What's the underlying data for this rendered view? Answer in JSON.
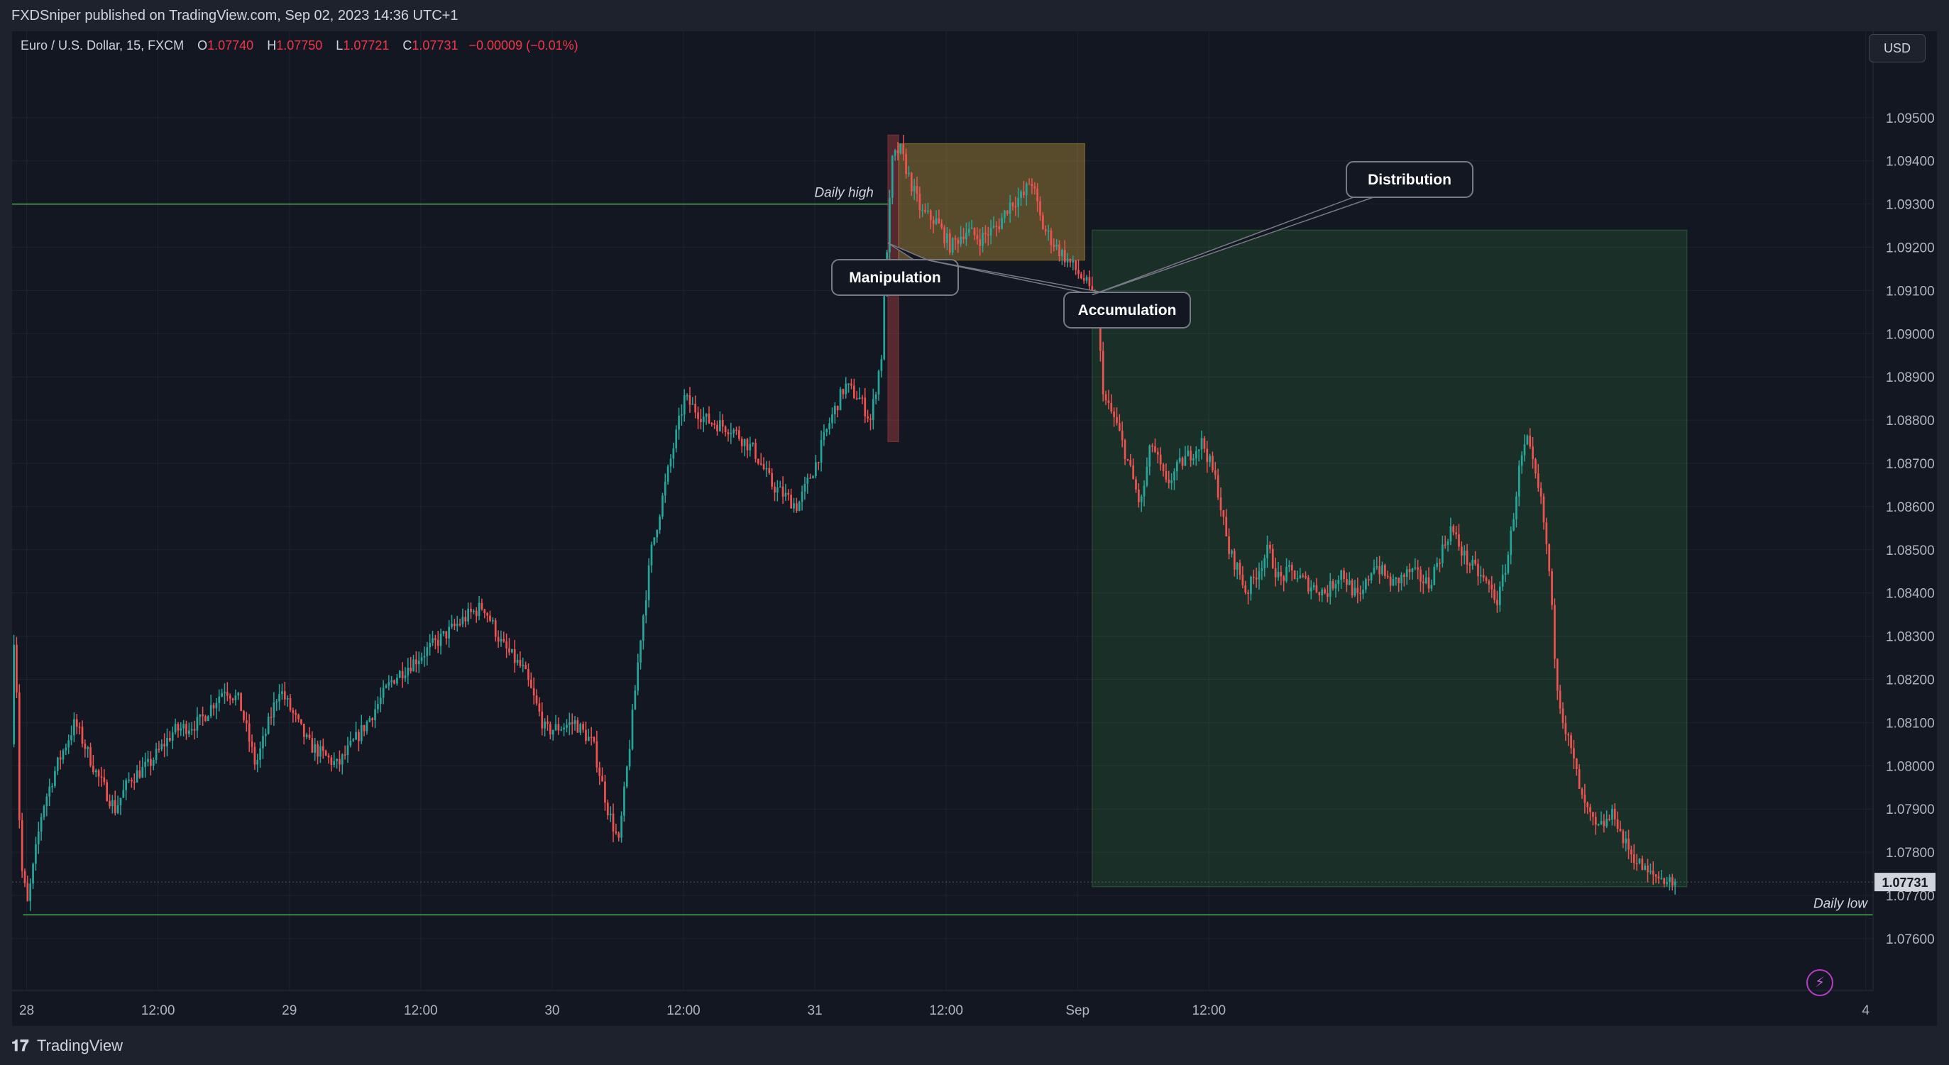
{
  "header": {
    "publisher_line": "FXDSniper published on TradingView.com, Sep 02, 2023 14:36 UTC+1"
  },
  "legend": {
    "symbol": "Euro / U.S. Dollar, 15, FXCM",
    "o_label": "O",
    "o_value": "1.07740",
    "h_label": "H",
    "h_value": "1.07750",
    "l_label": "L",
    "l_value": "1.07721",
    "c_label": "C",
    "c_value": "1.07731",
    "change": "−0.00009 (−0.01%)"
  },
  "currency_button": "USD",
  "footer": {
    "brand": "TradingView",
    "logo_icon": "tradingview-logo-icon"
  },
  "colors": {
    "up": "#26a69a",
    "down": "#ef5350",
    "background": "#131722",
    "grid": "#1f2330",
    "level_line": "#4caf50",
    "zone_manipulation": "#ef5350",
    "zone_accumulation": "#f5c242",
    "zone_distribution": "#4caf50"
  },
  "chart_data": {
    "type": "candlestick",
    "symbol": "EURUSD",
    "timeframe": "15",
    "y_ticks": [
      "1.09500",
      "1.09400",
      "1.09300",
      "1.09200",
      "1.09100",
      "1.09000",
      "1.08900",
      "1.08800",
      "1.08700",
      "1.08600",
      "1.08500",
      "1.08400",
      "1.08300",
      "1.08200",
      "1.08100",
      "1.08000",
      "1.07900",
      "1.07800",
      "1.07700",
      "1.07600"
    ],
    "ylim": [
      1.0748,
      1.097
    ],
    "x_range": [
      "Aug 27 22:40",
      "Sep 4 00:40"
    ],
    "x_ticks": [
      {
        "label": "28",
        "time": "Aug 28 00:00"
      },
      {
        "label": "12:00",
        "time": "Aug 28 12:00"
      },
      {
        "label": "29",
        "time": "Aug 29 00:00"
      },
      {
        "label": "12:00",
        "time": "Aug 29 12:00"
      },
      {
        "label": "30",
        "time": "Aug 30 00:00"
      },
      {
        "label": "12:00",
        "time": "Aug 30 12:00"
      },
      {
        "label": "31",
        "time": "Aug 31 00:00"
      },
      {
        "label": "12:00",
        "time": "Aug 31 12:00"
      },
      {
        "label": "Sep",
        "time": "Sep 1 00:00"
      },
      {
        "label": "12:00",
        "time": "Sep 1 12:00"
      },
      {
        "label": "4",
        "time": "Sep 4 00:00"
      }
    ],
    "price_path": [
      [
        "Aug 27 22:50",
        1.0805
      ],
      [
        "Aug 27 23:10",
        1.0838
      ],
      [
        "Aug 27 23:40",
        1.0778
      ],
      [
        "Aug 28 00:20",
        1.0768
      ],
      [
        "Aug 28 01:40",
        1.079
      ],
      [
        "Aug 28 03:00",
        1.08
      ],
      [
        "Aug 28 04:40",
        1.081
      ],
      [
        "Aug 28 06:40",
        1.0798
      ],
      [
        "Aug 28 08:20",
        1.079
      ],
      [
        "Aug 28 09:40",
        1.0797
      ],
      [
        "Aug 28 11:20",
        1.08
      ],
      [
        "Aug 28 13:40",
        1.0808
      ],
      [
        "Aug 28 16:00",
        1.081
      ],
      [
        "Aug 28 18:20",
        1.0818
      ],
      [
        "Aug 28 19:40",
        1.0815
      ],
      [
        "Aug 28 21:10",
        1.08
      ],
      [
        "Aug 28 23:20",
        1.0818
      ],
      [
        "Aug 29 02:00",
        1.0805
      ],
      [
        "Aug 29 04:40",
        1.08
      ],
      [
        "Aug 29 07:20",
        1.081
      ],
      [
        "Aug 29 09:40",
        1.082
      ],
      [
        "Aug 29 12:00",
        1.0825
      ],
      [
        "Aug 29 14:20",
        1.083
      ],
      [
        "Aug 29 16:40",
        1.0835
      ],
      [
        "Aug 29 18:00",
        1.0837
      ],
      [
        "Aug 29 19:40",
        1.0828
      ],
      [
        "Aug 29 21:40",
        1.0822
      ],
      [
        "Aug 29 23:40",
        1.0808
      ],
      [
        "Aug 30 02:20",
        1.081
      ],
      [
        "Aug 30 04:00",
        1.0805
      ],
      [
        "Aug 30 05:20",
        1.079
      ],
      [
        "Aug 30 06:20",
        1.0782
      ],
      [
        "Aug 30 07:20",
        1.0805
      ],
      [
        "Aug 30 08:20",
        1.083
      ],
      [
        "Aug 30 09:20",
        1.085
      ],
      [
        "Aug 30 11:00",
        1.087
      ],
      [
        "Aug 30 12:20",
        1.0885
      ],
      [
        "Aug 30 14:20",
        1.088
      ],
      [
        "Aug 30 16:40",
        1.0878
      ],
      [
        "Aug 30 18:40",
        1.0873
      ],
      [
        "Aug 30 20:20",
        1.0865
      ],
      [
        "Aug 30 22:40",
        1.086
      ],
      [
        "Aug 31 00:20",
        1.087
      ],
      [
        "Aug 31 01:40",
        1.088
      ],
      [
        "Aug 31 03:00",
        1.0888
      ],
      [
        "Aug 31 04:20",
        1.0885
      ],
      [
        "Aug 31 05:20",
        1.088
      ],
      [
        "Aug 31 06:20",
        1.0895
      ],
      [
        "Aug 31 06:50",
        1.092
      ],
      [
        "Aug 31 07:20",
        1.094
      ],
      [
        "Aug 31 08:00",
        1.0943
      ],
      [
        "Aug 31 09:00",
        1.0935
      ],
      [
        "Aug 31 10:00",
        1.0928
      ],
      [
        "Aug 31 11:20",
        1.0926
      ],
      [
        "Aug 31 12:40",
        1.092
      ],
      [
        "Aug 31 14:00",
        1.0924
      ],
      [
        "Aug 31 15:20",
        1.0922
      ],
      [
        "Aug 31 17:00",
        1.0925
      ],
      [
        "Aug 31 18:00",
        1.093
      ],
      [
        "Aug 31 19:20",
        1.0932
      ],
      [
        "Aug 31 20:00",
        1.0936
      ],
      [
        "Aug 31 21:00",
        1.0925
      ],
      [
        "Aug 31 22:20",
        1.092
      ],
      [
        "Aug 31 23:40",
        1.0916
      ],
      [
        "Sep 1 01:00",
        1.0912
      ],
      [
        "Sep 1 02:00",
        1.0905
      ],
      [
        "Sep 1 02:40",
        1.0885
      ],
      [
        "Sep 1 03:40",
        1.088
      ],
      [
        "Sep 1 04:40",
        1.0872
      ],
      [
        "Sep 1 06:00",
        1.086
      ],
      [
        "Sep 1 07:00",
        1.0875
      ],
      [
        "Sep 1 08:20",
        1.0865
      ],
      [
        "Sep 1 09:40",
        1.087
      ],
      [
        "Sep 1 11:40",
        1.0875
      ],
      [
        "Sep 1 13:00",
        1.0865
      ],
      [
        "Sep 1 14:00",
        1.085
      ],
      [
        "Sep 1 15:00",
        1.0845
      ],
      [
        "Sep 1 15:40",
        1.084
      ],
      [
        "Sep 1 16:40",
        1.0845
      ],
      [
        "Sep 1 17:40",
        1.085
      ],
      [
        "Sep 1 18:40",
        1.0843
      ],
      [
        "Sep 1 19:40",
        1.0845
      ],
      [
        "Sep 1 21:20",
        1.0842
      ],
      [
        "Sep 1 23:00",
        1.084
      ],
      [
        "Sep 2 00:20",
        1.0845
      ],
      [
        "Sep 2 02:00",
        1.0838
      ],
      [
        "Sep 2 03:20",
        1.0847
      ],
      [
        "Sep 2 05:00",
        1.0842
      ],
      [
        "Sep 2 06:40",
        1.0845
      ],
      [
        "Sep 2 08:20",
        1.0842
      ],
      [
        "Sep 2 10:20",
        1.0855
      ],
      [
        "Sep 2 11:40",
        1.0848
      ],
      [
        "Sep 2 13:40",
        1.0842
      ],
      [
        "Sep 2 14:40",
        1.0838
      ],
      [
        "Sep 2 15:40",
        1.085
      ],
      [
        "Sep 2 16:40",
        1.087
      ],
      [
        "Sep 2 17:20",
        1.0875
      ],
      [
        "Sep 2 18:40",
        1.086
      ],
      [
        "Sep 2 19:20",
        1.0845
      ],
      [
        "Sep 2 20:00",
        1.082
      ],
      [
        "Sep 2 20:40",
        1.081
      ],
      [
        "Sep 2 21:40",
        1.08
      ],
      [
        "Sep 2 22:20",
        1.0792
      ],
      [
        "Sep 2 23:40",
        1.0785
      ],
      [
        "Sep 3 01:20",
        1.0789
      ],
      [
        "Sep 3 02:00",
        1.0783
      ],
      [
        "Sep 3 03:20",
        1.0778
      ],
      [
        "Sep 3 04:20",
        1.0775
      ],
      [
        "Sep 3 05:40",
        1.0774
      ],
      [
        "Sep 3 06:40",
        1.0773
      ]
    ],
    "horizontal_levels": [
      {
        "label": "Daily high",
        "price": 1.093,
        "from": "Aug 27 22:40",
        "to": "Aug 31 06:40"
      },
      {
        "label": "Daily low",
        "price": 1.07655,
        "from": "Aug 27 23:40",
        "to": "Sep 4 00:40"
      }
    ],
    "zones": [
      {
        "name": "Manipulation",
        "from": "Aug 31 06:40",
        "to": "Aug 31 07:40",
        "price_top": 1.0946,
        "price_bottom": 1.0875,
        "color": "#ef5350"
      },
      {
        "name": "Accumulation",
        "from": "Aug 31 07:40",
        "to": "Sep 1 00:40",
        "price_top": 1.0944,
        "price_bottom": 1.0917,
        "color": "#f5c242"
      },
      {
        "name": "Distribution",
        "from": "Sep 1 01:20",
        "to": "Sep 3 07:40",
        "price_top": 1.0924,
        "price_bottom": 1.0772,
        "color": "#4caf50"
      }
    ],
    "callouts": [
      {
        "text": "Manipulation",
        "anchor_time": "Aug 31 06:40",
        "anchor_price": 1.0921
      },
      {
        "text": "Accumulation",
        "anchor_time": "Aug 31 10:20",
        "anchor_price": 1.0917
      },
      {
        "text": "Distribution",
        "anchor_time": "Sep 1 01:20",
        "anchor_price": 1.0909
      }
    ],
    "last_price": "1.07731",
    "last_price_value": 1.07731,
    "grid": true
  }
}
